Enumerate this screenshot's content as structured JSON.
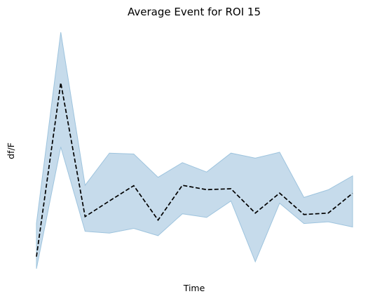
{
  "chart_data": {
    "type": "line",
    "title": "Average Event for ROI 15",
    "xlabel": "Time",
    "ylabel": "df/F",
    "x": [
      0,
      1,
      2,
      3,
      4,
      5,
      6,
      7,
      8,
      9,
      10,
      11,
      12,
      13
    ],
    "series": [
      {
        "values": [
          -2.8,
          7.2,
          -0.5,
          0.4,
          1.28,
          -0.7,
          1.3,
          1.05,
          1.1,
          -0.3,
          0.85,
          -0.38,
          -0.3,
          0.84
        ],
        "lower": [
          -3.5,
          3.5,
          -1.35,
          -1.45,
          -1.18,
          -1.6,
          -0.34,
          -0.55,
          0.4,
          -3.1,
          0.27,
          -0.9,
          -0.8,
          -1.1
        ],
        "upper": [
          -0.9,
          10.1,
          1.3,
          3.15,
          3.1,
          1.76,
          2.6,
          2.06,
          3.15,
          2.86,
          3.2,
          0.6,
          1.04,
          1.84
        ]
      }
    ],
    "ylim": [
      -3.5,
      10.1
    ],
    "grid": false,
    "axes_visible": false,
    "colors": {
      "mean_line": "#000000",
      "band_fill": "#c6dbeb",
      "band_edge": "#9ec4de"
    }
  }
}
